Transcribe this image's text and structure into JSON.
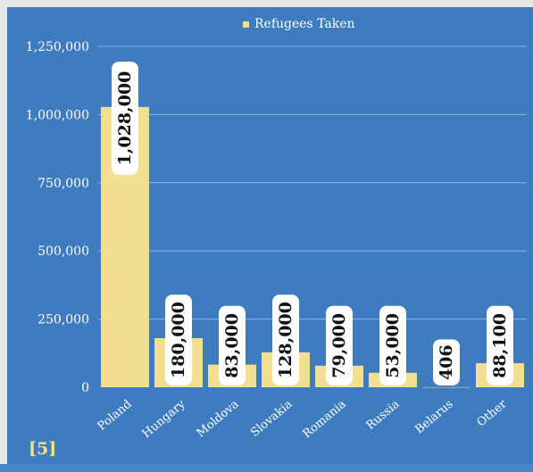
{
  "footnote": "[5]",
  "colors": {
    "background": "#3f7bbf",
    "bar": "#f2df8f",
    "label_bg": "#ffffff",
    "gridline": "#8db6e0",
    "text": "#ffffff"
  },
  "chart_data": {
    "type": "bar",
    "categories": [
      "Poland",
      "Hungary",
      "Moldova",
      "Slovakia",
      "Romania",
      "Russia",
      "Belarus",
      "Other"
    ],
    "series": [
      {
        "name": "Refugees Taken",
        "values": [
          1028000,
          180000,
          83000,
          128000,
          79000,
          53000,
          406,
          88100
        ],
        "labels": [
          "1,028,000",
          "180,000",
          "83,000",
          "128,000",
          "79,000",
          "53,000",
          "406",
          "88,100"
        ]
      }
    ],
    "yticks": [
      "0",
      "250,000",
      "500,000",
      "750,000",
      "1,000,000",
      "1,250,000"
    ],
    "ytick_values": [
      0,
      250000,
      500000,
      750000,
      1000000,
      1250000
    ],
    "ylim": [
      0,
      1250000
    ],
    "legend": "top-center",
    "grid": true
  }
}
